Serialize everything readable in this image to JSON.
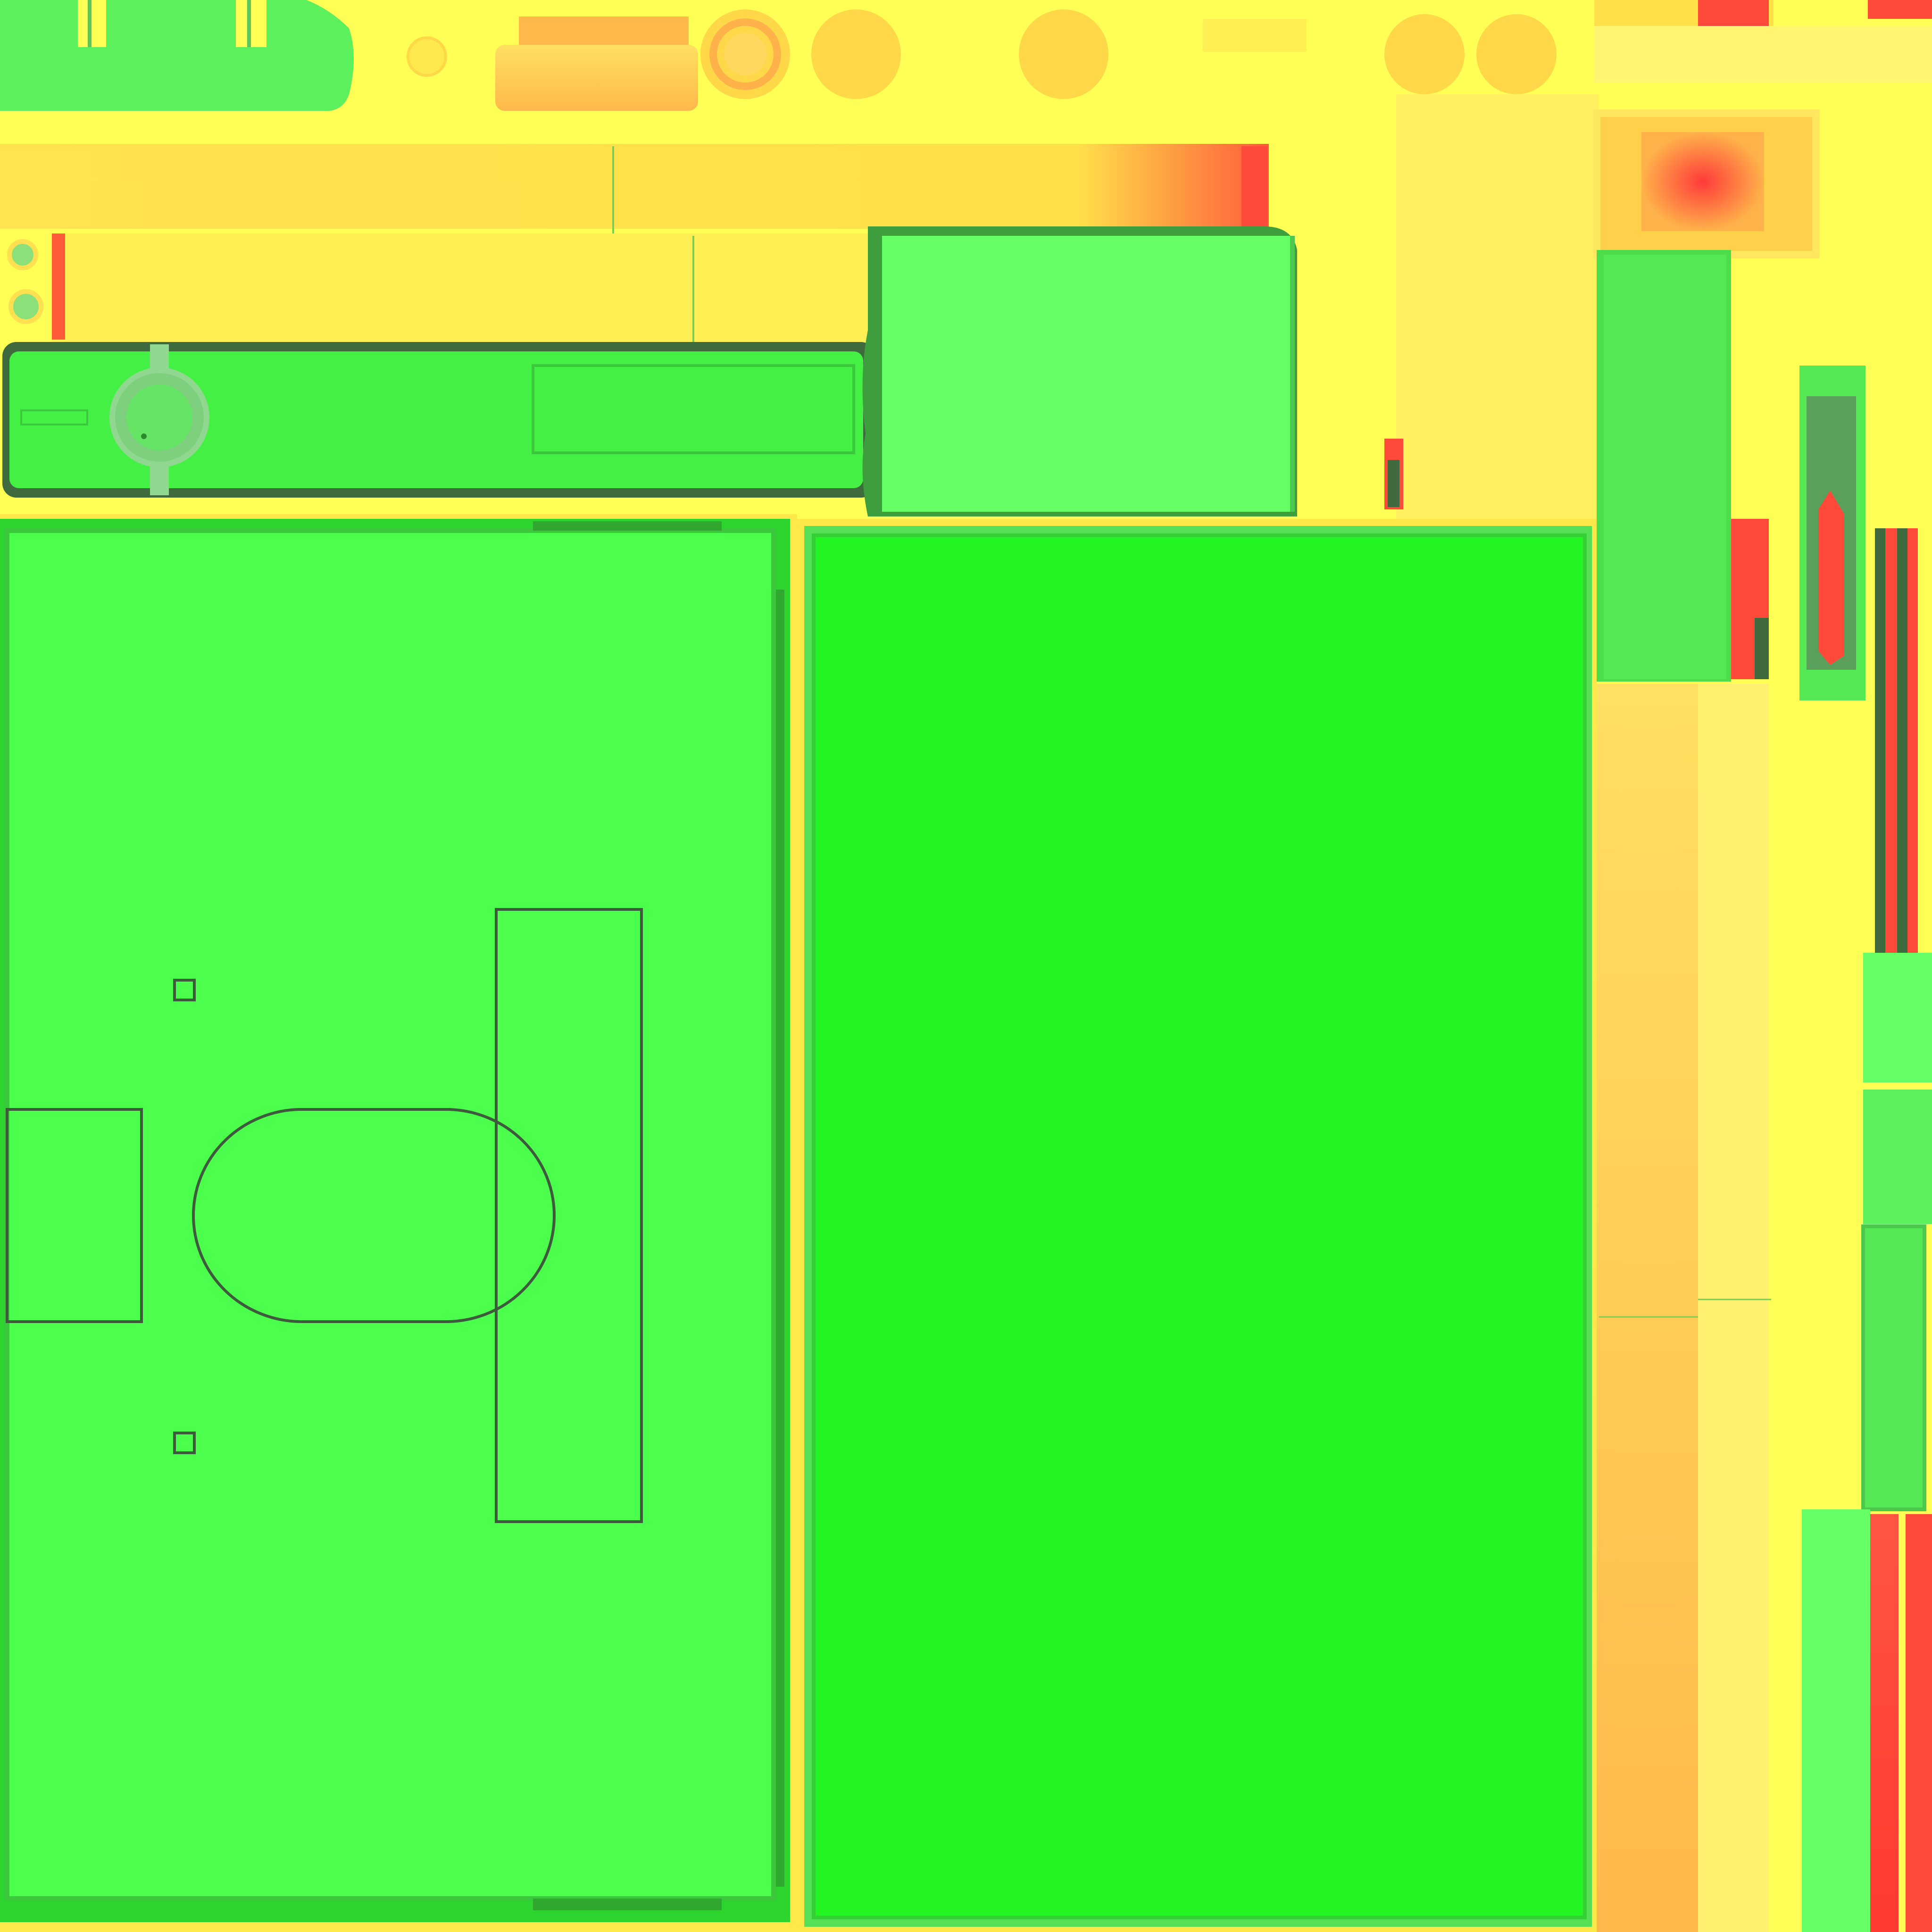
{
  "texture": {
    "kind": "texture-atlas",
    "colors": {
      "background": "#ffff55",
      "panel_main": "#4cff4c",
      "panel_bright": "#22ff22",
      "panel_light": "#66ff66",
      "accent_orange": "#ffc94a",
      "accent_red": "#ff4a3a",
      "outline_dark": "#3a5a3a",
      "line_gray": "#6a7a6a"
    },
    "icons": {
      "ring_button": "ring-icon",
      "round_button": "circle-icon",
      "dial": "dial-icon",
      "screw": "screw-icon"
    }
  }
}
